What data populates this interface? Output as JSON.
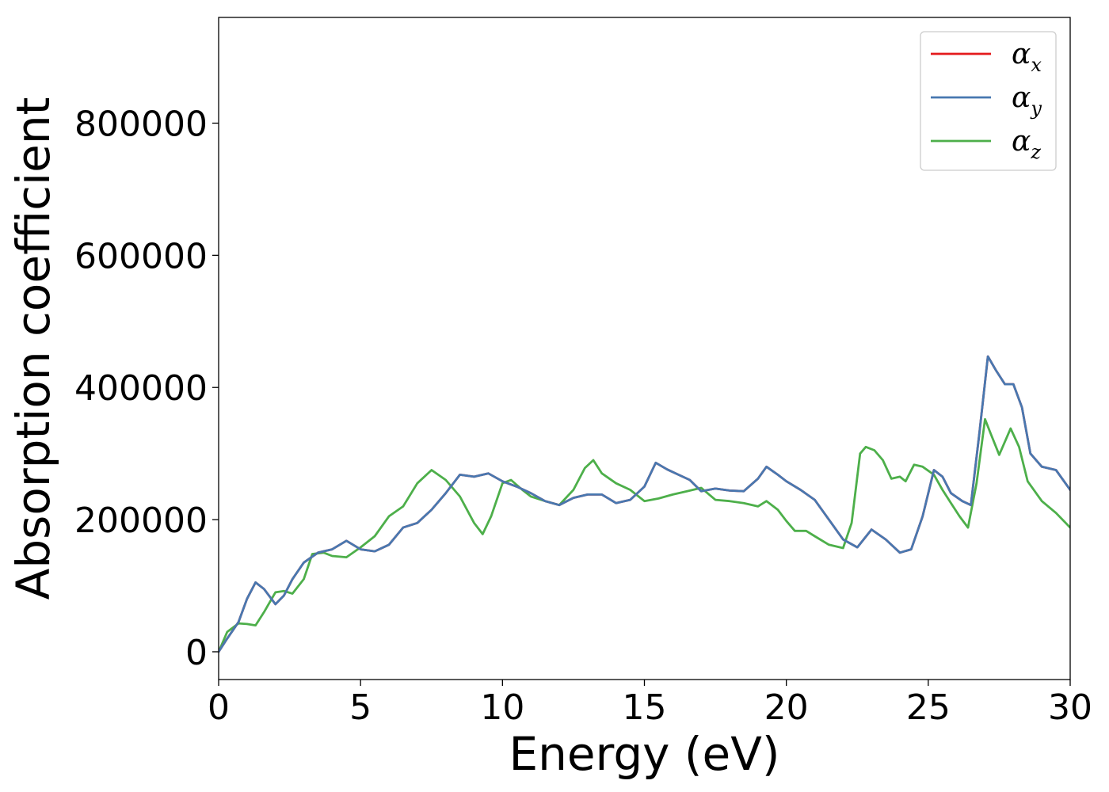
{
  "chart_data": {
    "type": "line",
    "title": "",
    "xlabel": "Energy (eV)",
    "ylabel": "Absorption coefficient",
    "xlim": [
      0,
      30
    ],
    "ylim": [
      -42000,
      960000
    ],
    "xticks": [
      0,
      5,
      10,
      15,
      20,
      25,
      30
    ],
    "yticks": [
      0,
      200000,
      400000,
      600000,
      800000
    ],
    "grid": false,
    "legend_position": "top-right",
    "series": [
      {
        "name": "α",
        "subscript": "x",
        "color": "#e41a1c",
        "x": [
          0,
          0.3,
          0.7,
          1.0,
          1.3,
          1.6,
          2.0,
          2.3,
          2.6,
          3.0,
          3.5,
          4.0,
          4.5,
          5.0,
          5.5,
          6.0,
          6.5,
          7.0,
          7.5,
          8.0,
          8.5,
          9.0,
          9.5,
          10.0,
          10.5,
          11.0,
          11.5,
          12.0,
          12.5,
          13.0,
          13.5,
          14.0,
          14.5,
          15.0,
          15.4,
          15.8,
          16.2,
          16.6,
          17.0,
          17.5,
          18.0,
          18.5,
          19.0,
          19.3,
          19.7,
          20.0,
          20.5,
          21.0,
          21.5,
          22.0,
          22.5,
          23.0,
          23.5,
          24.0,
          24.4,
          24.8,
          25.2,
          25.5,
          25.8,
          26.2,
          26.5,
          26.8,
          27.1,
          27.4,
          27.7,
          28.0,
          28.3,
          28.6,
          29.0,
          29.5,
          30.0
        ],
        "y": [
          0,
          20000,
          45000,
          80000,
          105000,
          95000,
          72000,
          85000,
          110000,
          135000,
          150000,
          155000,
          168000,
          155000,
          152000,
          162000,
          188000,
          195000,
          215000,
          240000,
          268000,
          265000,
          270000,
          258000,
          250000,
          240000,
          228000,
          222000,
          233000,
          238000,
          238000,
          225000,
          230000,
          250000,
          286000,
          276000,
          268000,
          260000,
          243000,
          247000,
          244000,
          243000,
          262000,
          280000,
          268000,
          258000,
          245000,
          230000,
          200000,
          170000,
          158000,
          185000,
          170000,
          150000,
          155000,
          205000,
          275000,
          265000,
          240000,
          228000,
          222000,
          330000,
          447000,
          425000,
          405000,
          405000,
          370000,
          300000,
          280000,
          275000,
          245000
        ]
      },
      {
        "name": "α",
        "subscript": "y",
        "color": "#4878b0",
        "x": [
          0,
          0.3,
          0.7,
          1.0,
          1.3,
          1.6,
          2.0,
          2.3,
          2.6,
          3.0,
          3.5,
          4.0,
          4.5,
          5.0,
          5.5,
          6.0,
          6.5,
          7.0,
          7.5,
          8.0,
          8.5,
          9.0,
          9.5,
          10.0,
          10.5,
          11.0,
          11.5,
          12.0,
          12.5,
          13.0,
          13.5,
          14.0,
          14.5,
          15.0,
          15.4,
          15.8,
          16.2,
          16.6,
          17.0,
          17.5,
          18.0,
          18.5,
          19.0,
          19.3,
          19.7,
          20.0,
          20.5,
          21.0,
          21.5,
          22.0,
          22.5,
          23.0,
          23.5,
          24.0,
          24.4,
          24.8,
          25.2,
          25.5,
          25.8,
          26.2,
          26.5,
          26.8,
          27.1,
          27.4,
          27.7,
          28.0,
          28.3,
          28.6,
          29.0,
          29.5,
          30.0
        ],
        "y": [
          0,
          20000,
          45000,
          80000,
          105000,
          95000,
          72000,
          85000,
          110000,
          135000,
          150000,
          155000,
          168000,
          155000,
          152000,
          162000,
          188000,
          195000,
          215000,
          240000,
          268000,
          265000,
          270000,
          258000,
          250000,
          240000,
          228000,
          222000,
          233000,
          238000,
          238000,
          225000,
          230000,
          250000,
          286000,
          276000,
          268000,
          260000,
          243000,
          247000,
          244000,
          243000,
          262000,
          280000,
          268000,
          258000,
          245000,
          230000,
          200000,
          170000,
          158000,
          185000,
          170000,
          150000,
          155000,
          205000,
          275000,
          265000,
          240000,
          228000,
          222000,
          330000,
          447000,
          425000,
          405000,
          405000,
          370000,
          300000,
          280000,
          275000,
          245000
        ]
      },
      {
        "name": "α",
        "subscript": "z",
        "color": "#4daf4a",
        "x": [
          0,
          0.3,
          0.7,
          1.0,
          1.3,
          1.6,
          2.0,
          2.3,
          2.6,
          3.0,
          3.3,
          3.7,
          4.0,
          4.5,
          5.0,
          5.5,
          6.0,
          6.5,
          7.0,
          7.5,
          8.0,
          8.5,
          9.0,
          9.3,
          9.6,
          10.0,
          10.3,
          10.7,
          11.0,
          11.5,
          12.0,
          12.5,
          12.9,
          13.2,
          13.5,
          14.0,
          14.5,
          15.0,
          15.5,
          16.0,
          16.5,
          17.0,
          17.5,
          18.0,
          18.5,
          19.0,
          19.3,
          19.7,
          20.0,
          20.3,
          20.7,
          21.0,
          21.5,
          22.0,
          22.3,
          22.6,
          22.8,
          23.1,
          23.4,
          23.7,
          24.0,
          24.2,
          24.5,
          24.8,
          25.2,
          25.5,
          25.8,
          26.1,
          26.4,
          26.7,
          27.0,
          27.2,
          27.5,
          27.9,
          28.2,
          28.5,
          29.0,
          29.5,
          30.0
        ],
        "y": [
          0,
          30000,
          43000,
          42000,
          40000,
          60000,
          90000,
          92000,
          88000,
          110000,
          148000,
          150000,
          145000,
          143000,
          158000,
          175000,
          205000,
          220000,
          255000,
          275000,
          260000,
          235000,
          195000,
          178000,
          205000,
          255000,
          260000,
          245000,
          235000,
          228000,
          222000,
          245000,
          278000,
          290000,
          270000,
          255000,
          245000,
          228000,
          232000,
          238000,
          243000,
          248000,
          230000,
          228000,
          225000,
          220000,
          228000,
          215000,
          198000,
          183000,
          183000,
          175000,
          162000,
          157000,
          195000,
          300000,
          310000,
          305000,
          290000,
          262000,
          265000,
          258000,
          283000,
          280000,
          268000,
          245000,
          225000,
          205000,
          188000,
          255000,
          352000,
          330000,
          298000,
          338000,
          310000,
          258000,
          228000,
          210000,
          188000
        ]
      }
    ]
  }
}
